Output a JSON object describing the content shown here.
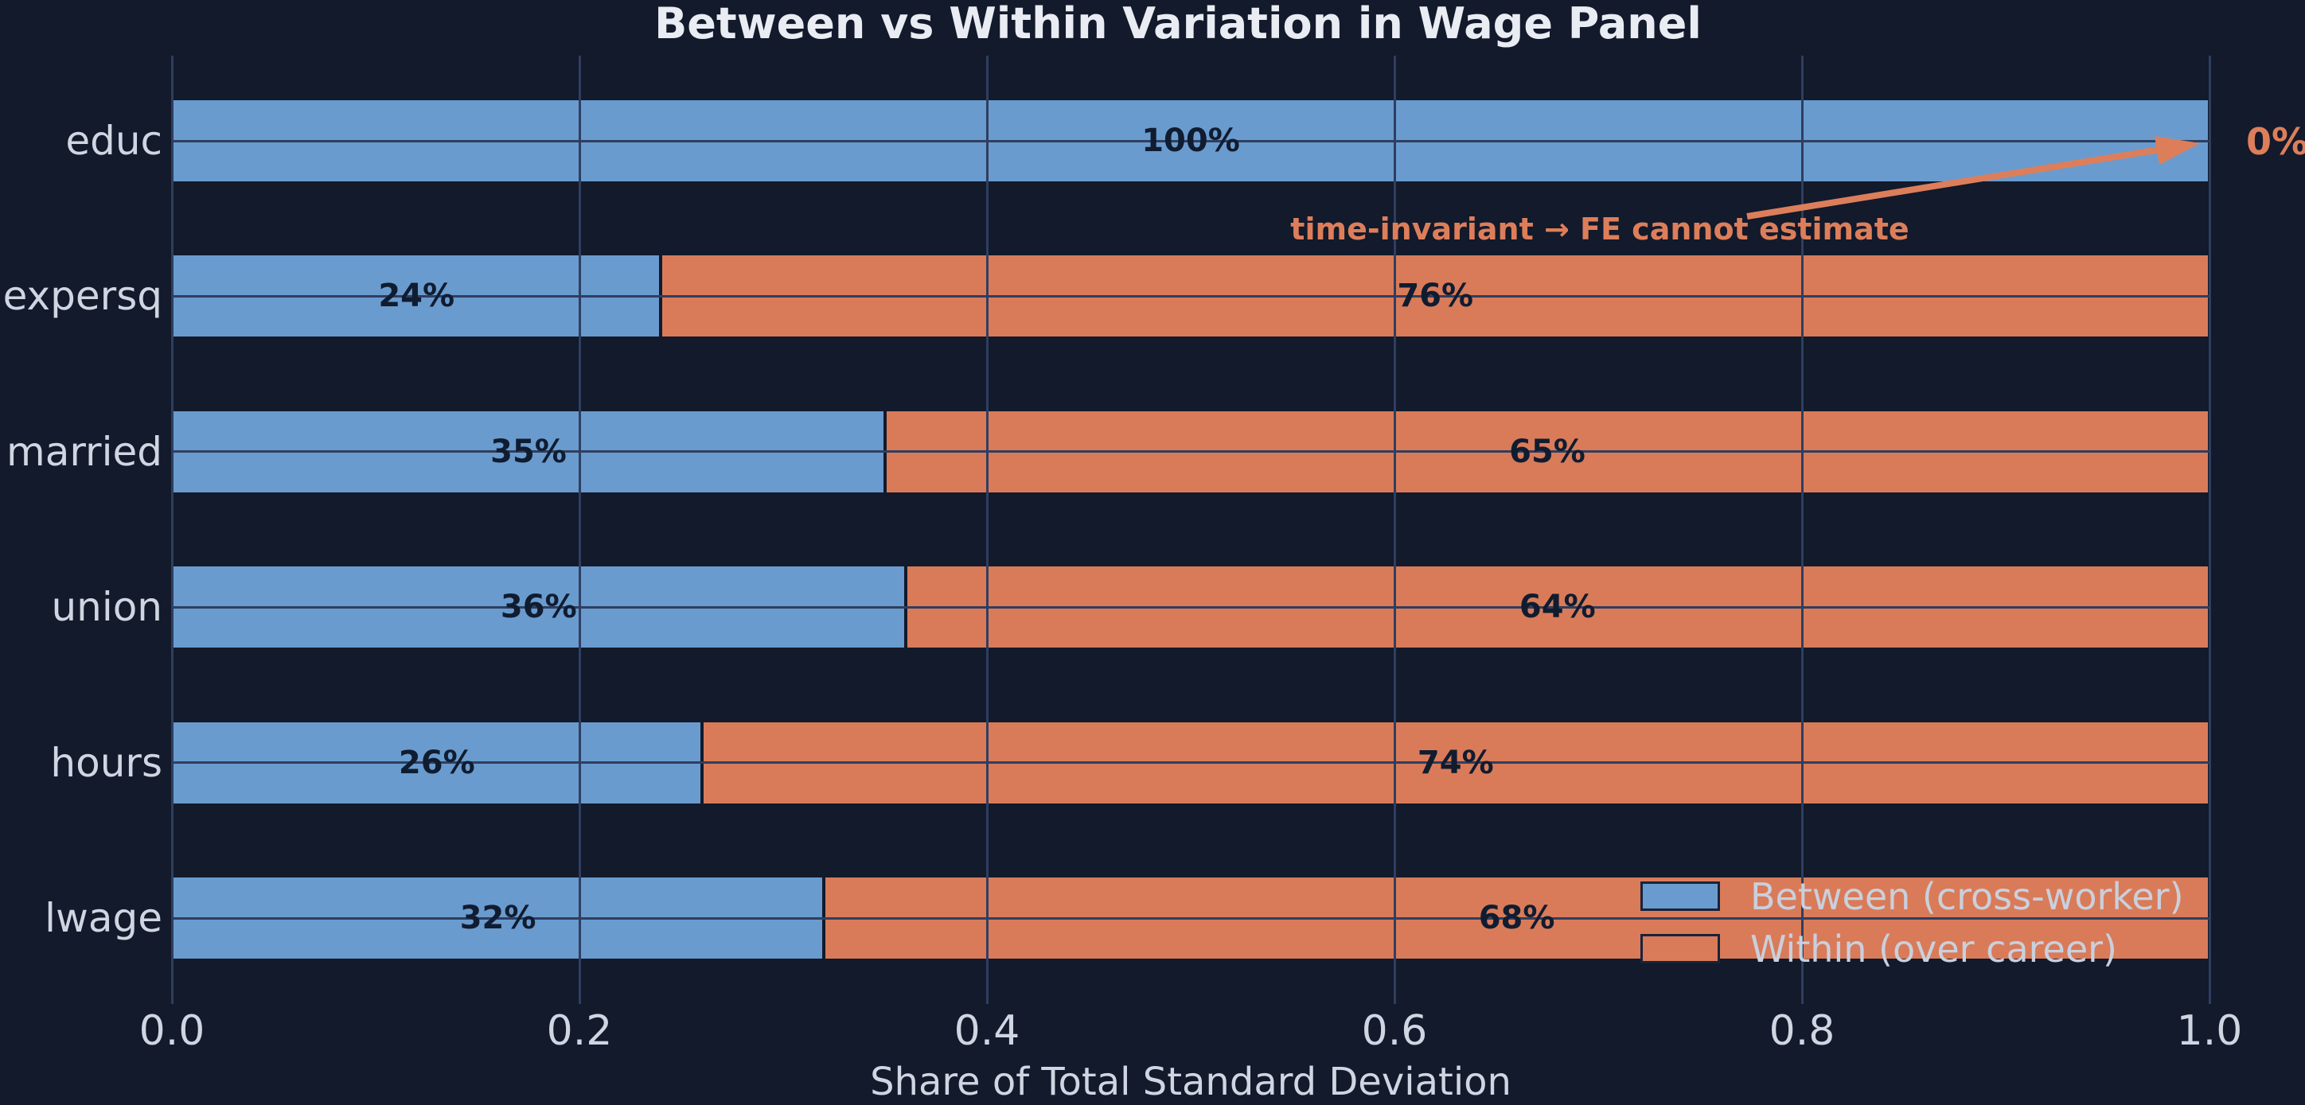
{
  "chart_data": {
    "type": "bar",
    "orientation": "horizontal-stacked",
    "title": "Between vs Within Variation in Wage Panel",
    "xlabel": "Share of Total Standard Deviation",
    "categories": [
      "educ",
      "expersq",
      "married",
      "union",
      "hours",
      "lwage"
    ],
    "series": [
      {
        "name": "Between (cross-worker)",
        "color": "#6a9bce",
        "values": [
          1.0,
          0.24,
          0.35,
          0.36,
          0.26,
          0.32
        ],
        "labels": [
          "100%",
          "24%",
          "35%",
          "36%",
          "26%",
          "32%"
        ]
      },
      {
        "name": "Within (over career)",
        "color": "#d97b59",
        "values": [
          0.0,
          0.76,
          0.65,
          0.64,
          0.74,
          0.68
        ],
        "labels": [
          "0%",
          "76%",
          "65%",
          "64%",
          "74%",
          "68%"
        ]
      }
    ],
    "x_ticks": [
      "0.0",
      "0.2",
      "0.4",
      "0.6",
      "0.8",
      "1.0"
    ],
    "xlim": [
      0,
      1
    ],
    "grid": true,
    "legend_position": "lower right"
  },
  "annotation": {
    "text": "time-invariant → FE cannot estimate",
    "zero_label": "0%",
    "color": "#dd7e5b"
  },
  "colors": {
    "background": "#121a2b",
    "gridline": "#2f3e60",
    "axis_text": "#cfd6e2",
    "title_text": "#e9ecf2",
    "bar_value_text": "#101c30",
    "between_blue": "#6a9bce",
    "within_orange": "#d97b59"
  }
}
